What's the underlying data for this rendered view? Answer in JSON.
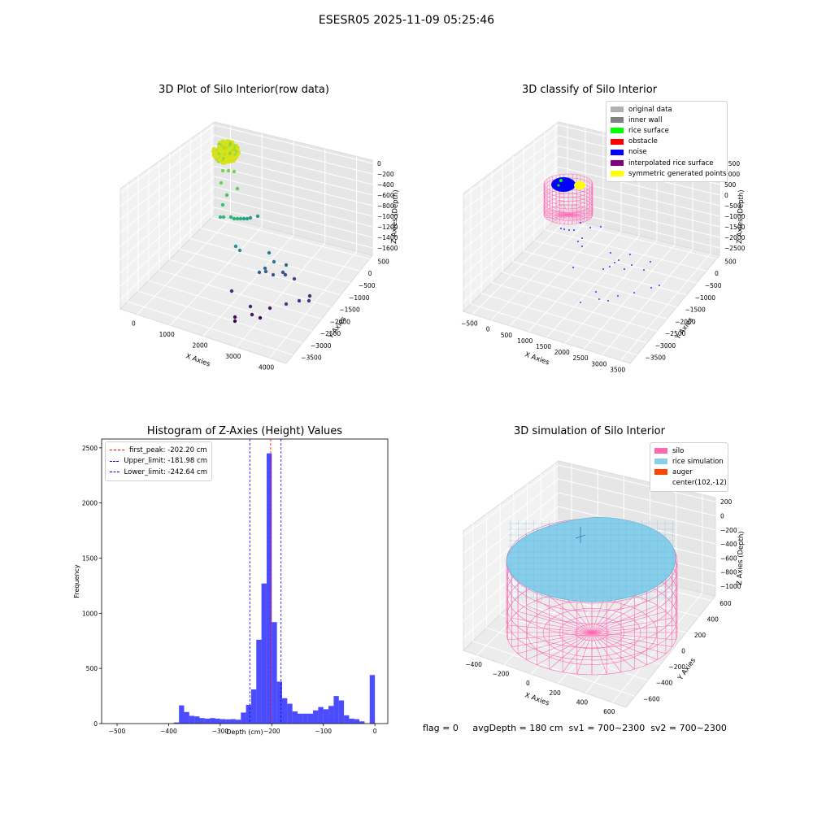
{
  "suptitle": "ESESR05 2025-11-09 05:25:46",
  "chart_data": [
    {
      "type": "scatter3d",
      "title": "3D Plot of Silo Interior(row data)",
      "xlabel": "X Axies",
      "ylabel": "Y Axies",
      "zlabel": "Z Axies (Depth)",
      "xticks": [
        "0",
        "1000",
        "2000",
        "3000",
        "4000"
      ],
      "yticks": [
        "500",
        "0",
        "−500",
        "−1000",
        "−1500",
        "−2000",
        "−2500",
        "−3000",
        "−3500"
      ],
      "zticks": [
        "0",
        "−200",
        "−400",
        "−600",
        "−800",
        "−1000",
        "−1200",
        "−1400",
        "−1600"
      ],
      "colormap": "viridis"
    },
    {
      "type": "scatter3d",
      "title": "3D classify of Silo Interior",
      "xlabel": "X Axies",
      "ylabel": "Y Axies",
      "zlabel": "Z Axies (Depth)",
      "xticks": [
        "−500",
        "0",
        "500",
        "1000",
        "1500",
        "2000",
        "2500",
        "3000",
        "3500"
      ],
      "yticks": [
        "500",
        "0",
        "−500",
        "−1000",
        "−1500",
        "−2000",
        "−2500",
        "−3000",
        "−3500"
      ],
      "zticks": [
        "1500",
        "1000",
        "500",
        "0",
        "−500",
        "−1000",
        "−1500",
        "−2000",
        "−2500"
      ],
      "legend": [
        {
          "label": "original data",
          "color": "#b0b0b0"
        },
        {
          "label": "inner wall",
          "color": "#808080"
        },
        {
          "label": "rice surface",
          "color": "#00ff00"
        },
        {
          "label": "obstacle",
          "color": "#ff0000"
        },
        {
          "label": "noise",
          "color": "#0000ff"
        },
        {
          "label": "interpolated rice surface",
          "color": "#800080"
        },
        {
          "label": "symmetric generated points",
          "color": "#ffff00"
        }
      ]
    },
    {
      "type": "bar",
      "title": "Histogram of Z-Axies (Height) Values",
      "xlabel": "Depth (cm)",
      "ylabel": "Frequency",
      "xlim": [
        -530,
        25
      ],
      "ylim": [
        0,
        2580
      ],
      "xticks": [
        -500,
        -400,
        -300,
        -200,
        -100,
        0
      ],
      "xtick_labels": [
        "−500",
        "−400",
        "−300",
        "−200",
        "−100",
        "0"
      ],
      "yticks": [
        0,
        500,
        1000,
        1500,
        2000,
        2500
      ],
      "bar_color": "#0000ff",
      "bins": [
        [
          -390,
          -380,
          10
        ],
        [
          -380,
          -370,
          165
        ],
        [
          -370,
          -360,
          105
        ],
        [
          -360,
          -350,
          70
        ],
        [
          -350,
          -340,
          65
        ],
        [
          -340,
          -330,
          50
        ],
        [
          -330,
          -320,
          45
        ],
        [
          -320,
          -310,
          50
        ],
        [
          -310,
          -300,
          45
        ],
        [
          -300,
          -290,
          40
        ],
        [
          -290,
          -280,
          38
        ],
        [
          -280,
          -270,
          40
        ],
        [
          -270,
          -260,
          35
        ],
        [
          -260,
          -250,
          100
        ],
        [
          -250,
          -240,
          170
        ],
        [
          -240,
          -230,
          310
        ],
        [
          -230,
          -220,
          760
        ],
        [
          -220,
          -210,
          1270
        ],
        [
          -210,
          -200,
          2450
        ],
        [
          -200,
          -190,
          920
        ],
        [
          -190,
          -180,
          380
        ],
        [
          -180,
          -170,
          230
        ],
        [
          -170,
          -160,
          180
        ],
        [
          -160,
          -150,
          110
        ],
        [
          -150,
          -140,
          90
        ],
        [
          -140,
          -130,
          90
        ],
        [
          -130,
          -120,
          90
        ],
        [
          -120,
          -110,
          120
        ],
        [
          -110,
          -100,
          150
        ],
        [
          -100,
          -90,
          130
        ],
        [
          -90,
          -80,
          160
        ],
        [
          -80,
          -70,
          250
        ],
        [
          -70,
          -60,
          210
        ],
        [
          -60,
          -50,
          75
        ],
        [
          -50,
          -40,
          45
        ],
        [
          -40,
          -30,
          40
        ],
        [
          -30,
          -20,
          20
        ],
        [
          -10,
          0,
          440
        ]
      ],
      "vlines": [
        {
          "x": -202.2,
          "color": "#ff0000",
          "label": "first_peak: -202.20 cm"
        },
        {
          "x": -181.98,
          "color": "#0000ff",
          "label": "Upper_limit: -181.98 cm"
        },
        {
          "x": -242.64,
          "color": "#0000ff",
          "label": "Lower_limit: -242.64 cm"
        }
      ],
      "legend_position": "upper left"
    },
    {
      "type": "surface3d",
      "title": "3D simulation of Silo Interior",
      "xlabel": "X Axies",
      "ylabel": "Y Axies",
      "zlabel": "Z Axies (Depth)",
      "xticks": [
        "−400",
        "−200",
        "0",
        "200",
        "400",
        "600"
      ],
      "yticks": [
        "600",
        "400",
        "200",
        "0",
        "−200",
        "−400",
        "−600"
      ],
      "zticks": [
        "200",
        "0",
        "−200",
        "−400",
        "−600",
        "−800",
        "−1000"
      ],
      "legend": [
        {
          "label": "silo",
          "color": "#ff69b4"
        },
        {
          "label": "rice simulation",
          "color": "#87ceeb"
        },
        {
          "label": "auger",
          "color": "#ff4500"
        },
        {
          "label": "center(102,-12)",
          "color": "#ffffff"
        }
      ]
    }
  ],
  "footer": "flag = 0     avgDepth = 180 cm  sv1 = 700~2300  sv2 = 700~2300"
}
